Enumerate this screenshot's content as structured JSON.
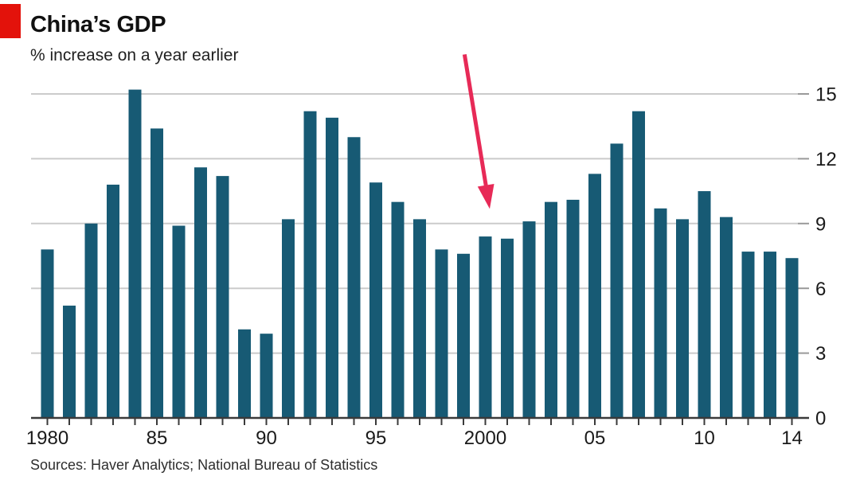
{
  "footer": {
    "source": "Sources: Haver Analytics; National Bureau of Statistics"
  },
  "colors": {
    "accent_red": "#e3120b",
    "bar": "#175a74",
    "arrow": "#e72a57",
    "gridline": "#cbcbcb",
    "grid_tick": "#999999",
    "axis_line": "#3a3a3a",
    "text": "#1a1a1a"
  },
  "chart_data": {
    "type": "bar",
    "title": "China’s GDP",
    "subtitle": "% increase on a year earlier",
    "xlabel": "",
    "ylabel": "%",
    "x": [
      1980,
      1981,
      1982,
      1983,
      1984,
      1985,
      1986,
      1987,
      1988,
      1989,
      1990,
      1991,
      1992,
      1993,
      1994,
      1995,
      1996,
      1997,
      1998,
      1999,
      2000,
      2001,
      2002,
      2003,
      2004,
      2005,
      2006,
      2007,
      2008,
      2009,
      2010,
      2011,
      2012,
      2013,
      2014
    ],
    "values": [
      7.8,
      5.2,
      9.0,
      10.8,
      15.2,
      13.4,
      8.9,
      11.6,
      11.2,
      4.1,
      3.9,
      9.2,
      14.2,
      13.9,
      13.0,
      10.9,
      10.0,
      9.2,
      7.8,
      7.6,
      8.4,
      8.3,
      9.1,
      10.0,
      10.1,
      11.3,
      12.7,
      14.2,
      9.7,
      9.2,
      10.5,
      9.3,
      7.7,
      7.7,
      7.4
    ],
    "ylim": [
      0,
      15
    ],
    "yticks": [
      0,
      3,
      6,
      9,
      12,
      15
    ],
    "yaxis_side": "right",
    "grid": "horizontal",
    "xticks": [
      {
        "year": 1980,
        "label": "1980"
      },
      {
        "year": 1985,
        "label": "85"
      },
      {
        "year": 1990,
        "label": "90"
      },
      {
        "year": 1995,
        "label": "95"
      },
      {
        "year": 2000,
        "label": "2000"
      },
      {
        "year": 2005,
        "label": "05"
      },
      {
        "year": 2010,
        "label": "10"
      },
      {
        "year": 2014,
        "label": "14"
      }
    ],
    "annotation": {
      "type": "arrow",
      "from_year": 1999.05,
      "from_value": 16.83,
      "to_year": 2000.2,
      "to_value": 9.68
    }
  }
}
